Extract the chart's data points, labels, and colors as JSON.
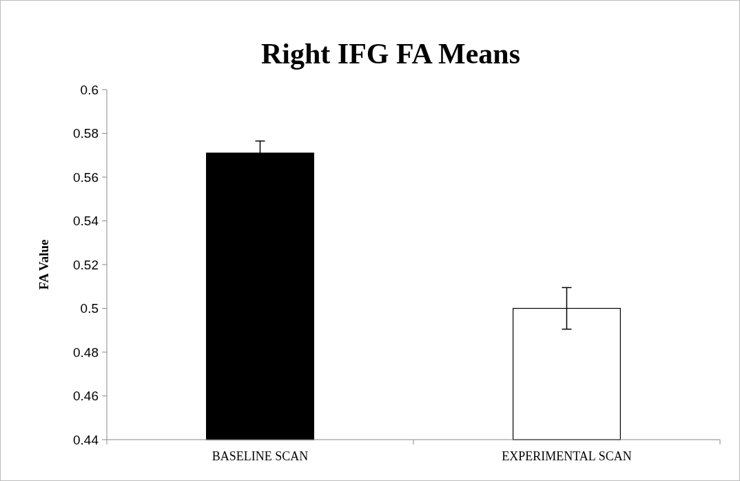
{
  "chart_data": {
    "type": "bar",
    "title": "Right IFG FA Means",
    "ylabel": "FA Value",
    "categories": [
      "BASELINE SCAN",
      "EXPERIMENTAL SCAN"
    ],
    "values": [
      0.571,
      0.5
    ],
    "errors": [
      0.0055,
      0.0095
    ],
    "colors": [
      "#000000",
      "#ffffff"
    ],
    "ylim": [
      0.44,
      0.6
    ],
    "yticks": [
      0.44,
      0.46,
      0.48,
      0.5,
      0.52,
      0.54,
      0.56,
      0.58,
      0.6
    ],
    "grid": false
  }
}
